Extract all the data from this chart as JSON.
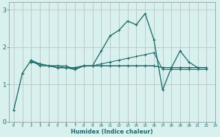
{
  "xlabel": "Humidex (Indice chaleur)",
  "background_color": "#d8f0ee",
  "line_color": "#1e6b6b",
  "grid_color": "#c0c8c8",
  "xlim": [
    -0.5,
    23
  ],
  "ylim": [
    0,
    3.2
  ],
  "yticks": [
    0,
    1,
    2,
    3
  ],
  "xticks": [
    0,
    1,
    2,
    3,
    4,
    5,
    6,
    7,
    8,
    9,
    10,
    11,
    12,
    13,
    14,
    15,
    16,
    17,
    18,
    19,
    20,
    21,
    22,
    23
  ],
  "lines": [
    [
      0.3,
      1.3,
      1.65,
      1.5,
      1.5,
      1.45,
      1.45,
      1.4,
      1.5,
      1.5,
      1.9,
      2.3,
      2.45,
      2.7,
      2.6,
      2.9,
      2.2,
      0.85,
      1.45,
      1.9,
      1.6,
      1.45,
      1.45
    ],
    [
      null,
      null,
      1.65,
      1.55,
      1.5,
      1.5,
      1.45,
      1.45,
      1.5,
      1.5,
      1.55,
      1.6,
      1.65,
      1.7,
      1.75,
      1.8,
      1.85,
      1.4,
      1.4,
      1.4,
      1.4,
      1.4,
      1.4
    ],
    [
      null,
      null,
      1.6,
      1.55,
      1.5,
      1.5,
      1.5,
      1.4,
      1.5,
      1.5,
      1.5,
      1.5,
      1.5,
      1.5,
      1.5,
      1.5,
      1.5,
      1.45,
      1.45,
      1.45,
      1.45,
      1.45,
      1.45
    ],
    [
      null,
      null,
      1.6,
      1.55,
      1.5,
      1.45,
      1.45,
      1.45,
      1.5,
      1.5,
      1.5,
      1.5,
      1.5,
      1.5,
      1.5,
      1.5,
      1.5,
      1.45,
      1.45,
      1.45,
      1.45,
      1.45,
      1.45
    ]
  ]
}
